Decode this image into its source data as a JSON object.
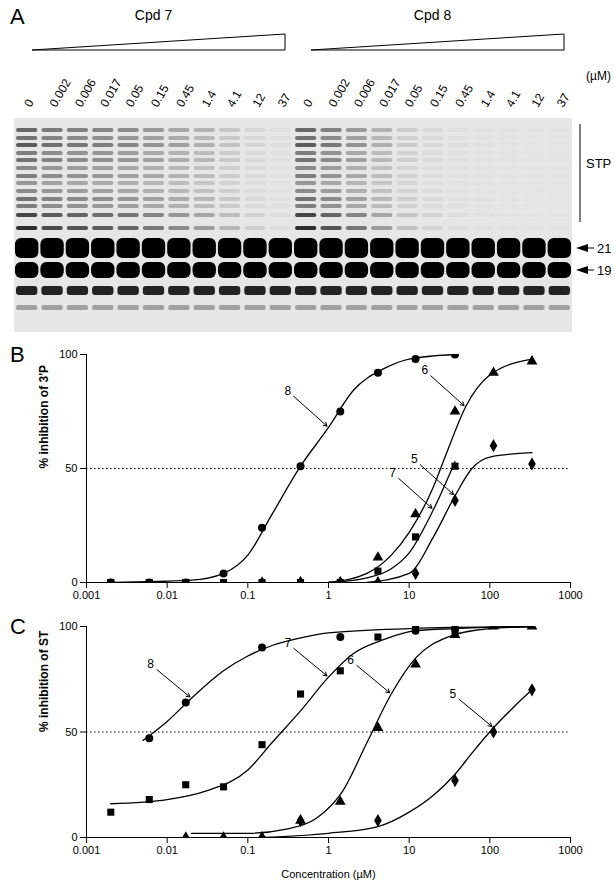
{
  "panel_a": {
    "letter": "A",
    "groups": [
      {
        "name": "Cpd 7",
        "lanes": [
          "0",
          "0.002",
          "0.006",
          "0.017",
          "0.05",
          "0.15",
          "0.45",
          "1.4",
          "4.1",
          "12",
          "37"
        ],
        "stp_signal": [
          1,
          0.85,
          0.8,
          0.75,
          0.7,
          0.6,
          0.5,
          0.4,
          0.25,
          0.12,
          0.05
        ]
      },
      {
        "name": "Cpd 8",
        "lanes": [
          "0",
          "0.002",
          "0.006",
          "0.017",
          "0.05",
          "0.15",
          "0.45",
          "1.4",
          "4.1",
          "12",
          "37"
        ],
        "stp_signal": [
          1,
          0.8,
          0.6,
          0.4,
          0.2,
          0.1,
          0.05,
          0.03,
          0.02,
          0.02,
          0.02
        ]
      }
    ],
    "unit": "(µM)",
    "band_labels": [
      "STP",
      "21",
      "19"
    ]
  },
  "chart_data": [
    {
      "type": "line",
      "letter": "B",
      "ylabel": "% inhibition of 3'P",
      "log": "x",
      "xlim": [
        0.001,
        1000
      ],
      "xticks": [
        0.001,
        0.01,
        0.1,
        1,
        10,
        100,
        1000
      ],
      "ylim": [
        0,
        100
      ],
      "yticks": [
        0,
        50,
        100
      ],
      "annotations": [
        {
          "type": "hline",
          "y": 50,
          "line_style": "dotted"
        }
      ],
      "series": [
        {
          "name": "8",
          "color": "#000000",
          "marker": "circle",
          "x": [
            0.002,
            0.006,
            0.017,
            0.05,
            0.15,
            0.45,
            1.4,
            4.1,
            12,
            37
          ],
          "values": [
            0,
            0,
            0,
            4,
            24,
            51,
            75,
            92,
            98,
            100
          ],
          "fit_x": [
            0.002,
            0.02,
            0.05,
            0.1,
            0.2,
            0.45,
            1,
            2,
            5,
            10,
            37
          ],
          "fit_y": [
            0,
            1,
            4,
            12,
            30,
            51,
            68,
            84,
            94,
            98,
            100
          ]
        },
        {
          "name": "7",
          "color": "#000000",
          "marker": "square",
          "x": [
            0.002,
            0.006,
            0.017,
            0.05,
            0.15,
            0.45,
            1.4,
            4.1,
            12,
            37
          ],
          "values": [
            0,
            0,
            0,
            0,
            0,
            0,
            0,
            5,
            20,
            51
          ],
          "fit_x": [
            1,
            3,
            6,
            10,
            20,
            37
          ],
          "fit_y": [
            0,
            2,
            6,
            13,
            32,
            53
          ]
        },
        {
          "name": "6",
          "color": "#000000",
          "marker": "triangle",
          "x": [
            0.15,
            0.45,
            1.4,
            4.1,
            12,
            37,
            111,
            333
          ],
          "values": [
            0,
            0,
            0,
            11,
            30,
            75,
            92,
            97
          ],
          "fit_x": [
            1,
            3,
            6,
            10,
            20,
            30,
            50,
            100,
            333
          ],
          "fit_y": [
            0,
            4,
            12,
            22,
            42,
            58,
            77,
            91,
            98
          ]
        },
        {
          "name": "5",
          "color": "#000000",
          "marker": "diamond",
          "x": [
            0.45,
            1.4,
            4.1,
            12,
            37,
            111,
            333
          ],
          "values": [
            0,
            0,
            0,
            4,
            36,
            60,
            52
          ],
          "fit_x": [
            3,
            10,
            20,
            37,
            60,
            100,
            333
          ],
          "fit_y": [
            0,
            4,
            20,
            38,
            50,
            55,
            57
          ]
        }
      ]
    },
    {
      "type": "line",
      "letter": "C",
      "ylabel": "% inhibition of ST",
      "xlabel": "Concentration (µM)",
      "log": "x",
      "xlim": [
        0.001,
        1000
      ],
      "xticks": [
        0.001,
        0.01,
        0.1,
        1,
        10,
        100,
        1000
      ],
      "ylim": [
        0,
        100
      ],
      "yticks": [
        0,
        50,
        100
      ],
      "annotations": [
        {
          "type": "hline",
          "y": 50,
          "line_style": "dotted"
        }
      ],
      "series": [
        {
          "name": "8",
          "color": "#000000",
          "marker": "circle",
          "x": [
            0.006,
            0.017,
            0.15,
            1.4,
            12,
            37
          ],
          "values": [
            47,
            64,
            90,
            95,
            98,
            99
          ],
          "fit_x": [
            0.005,
            0.01,
            0.02,
            0.05,
            0.1,
            0.2,
            0.5,
            1,
            10,
            333
          ],
          "fit_y": [
            46,
            55,
            66,
            79,
            86,
            91,
            95,
            97,
            99,
            100
          ]
        },
        {
          "name": "7",
          "color": "#000000",
          "marker": "square",
          "x": [
            0.002,
            0.006,
            0.017,
            0.05,
            0.15,
            0.45,
            1.4,
            4.1,
            12,
            37
          ],
          "values": [
            12,
            18,
            25,
            24,
            44,
            68,
            79,
            95,
            100,
            98
          ],
          "fit_x": [
            0.002,
            0.01,
            0.03,
            0.1,
            0.2,
            0.45,
            1,
            2,
            5,
            12,
            37,
            333
          ],
          "fit_y": [
            16,
            18,
            22,
            32,
            45,
            60,
            76,
            87,
            94,
            98,
            99,
            100
          ]
        },
        {
          "name": "6",
          "color": "#000000",
          "marker": "triangle",
          "x": [
            0.017,
            0.05,
            0.45,
            1.4,
            4.1,
            12,
            37,
            111,
            333
          ],
          "values": [
            0,
            0,
            8,
            17,
            52,
            82,
            96,
            100,
            100
          ],
          "fit_x": [
            0.02,
            0.1,
            0.3,
            0.7,
            1.5,
            3,
            6,
            12,
            30,
            100,
            333
          ],
          "fit_y": [
            2,
            2,
            4,
            9,
            22,
            45,
            68,
            85,
            95,
            99,
            100
          ]
        },
        {
          "name": "5",
          "color": "#000000",
          "marker": "diamond",
          "x": [
            0.15,
            0.45,
            4.1,
            37,
            111,
            333
          ],
          "values": [
            0,
            8,
            8,
            27,
            50,
            70
          ],
          "fit_x": [
            0.15,
            1,
            4,
            10,
            20,
            37,
            60,
            111,
            200,
            333
          ],
          "fit_y": [
            0,
            2,
            5,
            12,
            20,
            30,
            40,
            52,
            62,
            70
          ]
        }
      ]
    }
  ]
}
